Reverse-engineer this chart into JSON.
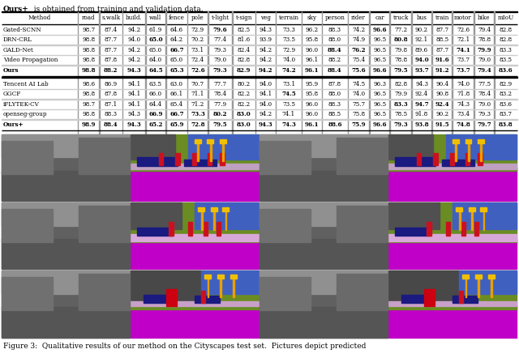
{
  "title_bold": "Ours+",
  "title_rest": "  is obtained from training and validation data.",
  "caption": "Figure 3:  Qualitative results of our method on the Cityscapes test set.  Pictures depict predicted",
  "col_headers": [
    "Method",
    "road",
    "s.walk",
    "build.",
    "wall",
    "fence",
    "pole",
    "t-light",
    "t-sign",
    "veg",
    "terrain",
    "sky",
    "person",
    "rider",
    "car",
    "truck",
    "bus",
    "train",
    "motor",
    "bike",
    "mIoU"
  ],
  "col_rel_widths": [
    2.8,
    0.8,
    0.85,
    0.85,
    0.75,
    0.8,
    0.75,
    0.9,
    0.85,
    0.75,
    0.95,
    0.75,
    0.95,
    0.8,
    0.75,
    0.8,
    0.75,
    0.75,
    0.8,
    0.75,
    0.85
  ],
  "section1": [
    {
      "name": "Gated-SCNN",
      "vals": [
        "98.7",
        "87.4",
        "94.2",
        "61.9",
        "64.6",
        "72.9",
        "79.6",
        "82.5",
        "94.3",
        "73.3",
        "96.2",
        "88.3",
        "74.2",
        "96.6",
        "77.2",
        "90.2",
        "87.7",
        "72.6",
        "79.4",
        "82.8"
      ],
      "bold_vals": [
        6,
        13
      ],
      "name_bold": false,
      "all_bold": false
    },
    {
      "name": "DRN-CRL",
      "vals": [
        "98.8",
        "87.7",
        "94.0",
        "65.0",
        "64.2",
        "70.2",
        "77.4",
        "81.6",
        "93.9",
        "73.5",
        "95.8",
        "88.0",
        "74.9",
        "96.5",
        "80.8",
        "92.1",
        "88.5",
        "72.1",
        "78.8",
        "82.8"
      ],
      "bold_vals": [
        3,
        14
      ],
      "name_bold": false,
      "all_bold": false
    },
    {
      "name": "GALD-Net",
      "vals": [
        "98.8",
        "87.7",
        "94.2",
        "65.0",
        "66.7",
        "73.1",
        "79.3",
        "82.4",
        "94.2",
        "72.9",
        "96.0",
        "88.4",
        "76.2",
        "96.5",
        "79.8",
        "89.6",
        "87.7",
        "74.1",
        "79.9",
        "83.3"
      ],
      "bold_vals": [
        4,
        11,
        12,
        17,
        18
      ],
      "name_bold": false,
      "all_bold": false
    },
    {
      "name": "Video Propagation",
      "vals": [
        "98.8",
        "87.8",
        "94.2",
        "64.0",
        "65.0",
        "72.4",
        "79.0",
        "82.8",
        "94.2",
        "74.0",
        "96.1",
        "88.2",
        "75.4",
        "96.5",
        "78.8",
        "94.0",
        "91.6",
        "73.7",
        "79.0",
        "83.5"
      ],
      "bold_vals": [
        15,
        16
      ],
      "name_bold": false,
      "all_bold": false
    },
    {
      "name": "Ours",
      "vals": [
        "98.8",
        "88.2",
        "94.3",
        "64.5",
        "65.3",
        "72.6",
        "79.3",
        "82.9",
        "94.2",
        "74.2",
        "96.1",
        "88.4",
        "75.6",
        "96.6",
        "79.5",
        "93.7",
        "91.2",
        "73.7",
        "79.4",
        "83.6"
      ],
      "bold_vals": [
        0,
        1,
        2,
        7,
        9,
        19
      ],
      "name_bold": true,
      "all_bold": true
    }
  ],
  "section2": [
    {
      "name": "Tencent AI Lab",
      "vals": [
        "98.6",
        "86.9",
        "94.1",
        "63.5",
        "63.0",
        "70.7",
        "77.7",
        "80.2",
        "94.0",
        "73.1",
        "95.9",
        "87.8",
        "74.5",
        "96.3",
        "82.8",
        "94.3",
        "90.4",
        "74.0",
        "77.5",
        "82.9"
      ],
      "bold_vals": [],
      "name_bold": false,
      "all_bold": false
    },
    {
      "name": "GGCF",
      "vals": [
        "98.8",
        "87.8",
        "94.1",
        "66.0",
        "66.1",
        "71.1",
        "78.4",
        "82.2",
        "94.1",
        "74.5",
        "95.8",
        "88.0",
        "74.0",
        "96.5",
        "79.9",
        "92.4",
        "90.8",
        "71.8",
        "78.4",
        "83.2"
      ],
      "bold_vals": [
        9
      ],
      "name_bold": false,
      "all_bold": false
    },
    {
      "name": "iFLYTEK-CV",
      "vals": [
        "98.7",
        "87.1",
        "94.1",
        "64.4",
        "65.4",
        "71.2",
        "77.9",
        "82.2",
        "94.0",
        "73.5",
        "96.0",
        "88.3",
        "75.7",
        "96.5",
        "83.3",
        "94.7",
        "92.4",
        "74.3",
        "79.0",
        "83.6"
      ],
      "bold_vals": [
        14,
        15,
        16
      ],
      "name_bold": false,
      "all_bold": false
    },
    {
      "name": "openseg-group",
      "vals": [
        "98.8",
        "88.3",
        "94.3",
        "66.9",
        "66.7",
        "73.3",
        "80.2",
        "83.0",
        "94.2",
        "74.1",
        "96.0",
        "88.5",
        "75.8",
        "96.5",
        "78.5",
        "91.8",
        "90.2",
        "73.4",
        "79.3",
        "83.7"
      ],
      "bold_vals": [
        3,
        4,
        5,
        6,
        7
      ],
      "name_bold": false,
      "all_bold": false
    },
    {
      "name": "Ours+",
      "vals": [
        "98.9",
        "88.4",
        "94.3",
        "65.2",
        "65.9",
        "72.8",
        "79.5",
        "83.0",
        "94.3",
        "74.3",
        "96.1",
        "88.6",
        "75.9",
        "96.6",
        "79.3",
        "93.8",
        "91.5",
        "74.8",
        "79.7",
        "83.8"
      ],
      "bold_vals": [
        0,
        1,
        9,
        11,
        13,
        17,
        19
      ],
      "name_bold": true,
      "all_bold": true
    }
  ]
}
